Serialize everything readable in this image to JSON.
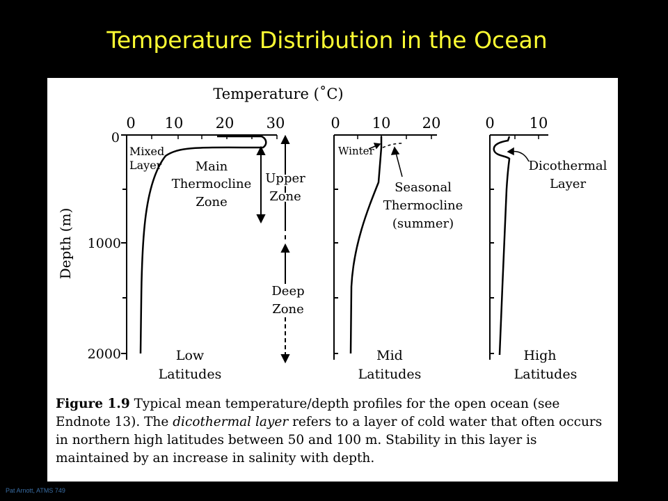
{
  "slide": {
    "title": "Temperature Distribution in the Ocean",
    "credit": "Pat Arnott, ATMS 749",
    "colors": {
      "title": "#ffff33",
      "background": "#000000",
      "credit": "#3a6ea5"
    }
  },
  "figure": {
    "top_label": "Temperature (˚C)",
    "y_axis_label": "Depth (m)",
    "y_ticks": [
      "0",
      "1000",
      "2000"
    ],
    "panels": [
      {
        "name": "low",
        "x_ticks": [
          "0",
          "10",
          "20",
          "30"
        ],
        "labels": [
          "Mixed",
          "Layer",
          "Main",
          "Thermocline",
          "Zone",
          "Upper",
          "Zone",
          "Deep",
          "Zone"
        ],
        "footer": [
          "Low",
          "Latitudes"
        ]
      },
      {
        "name": "mid",
        "x_ticks": [
          "0",
          "10",
          "20"
        ],
        "labels": [
          "Winter",
          "Seasonal",
          "Thermocline",
          "(summer)"
        ],
        "footer": [
          "Mid",
          "Latitudes"
        ]
      },
      {
        "name": "high",
        "x_ticks": [
          "0",
          "10"
        ],
        "labels": [
          "Dicothermal",
          "Layer"
        ],
        "footer": [
          "High",
          "Latitudes"
        ]
      }
    ],
    "caption": {
      "figure_no": "Figure 1.9",
      "text_1": "Typical mean temperature/depth profiles for the open ocean (see Endnote 13). The",
      "term": "dicothermal layer",
      "text_2": "refers to a layer of cold water that often occurs in northern high latitudes between 50 and 100 m. Stability in this layer is maintained by an increase in salinity with depth."
    }
  }
}
